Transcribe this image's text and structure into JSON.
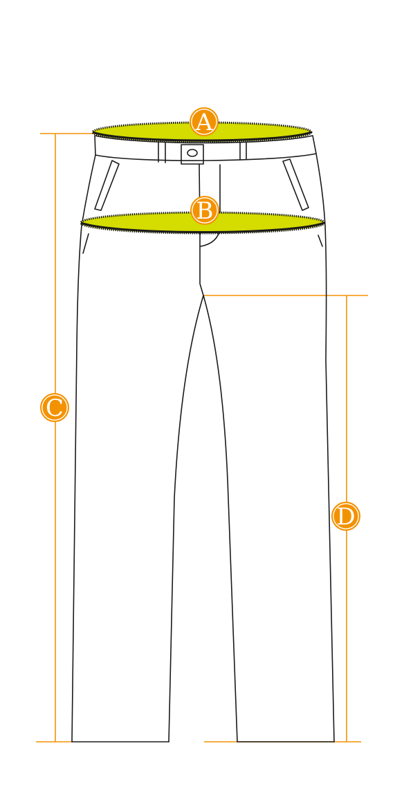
{
  "colors": {
    "accent": "#F39200",
    "ellipse_fill": "#D4DC00",
    "outline": "#1a1a1a",
    "background": "#FFFFFF",
    "badge_text": "#FFFFFF"
  },
  "labels": {
    "a": "A",
    "b": "B",
    "c": "C",
    "d": "D"
  },
  "figure": "trousers-measurement-diagram"
}
